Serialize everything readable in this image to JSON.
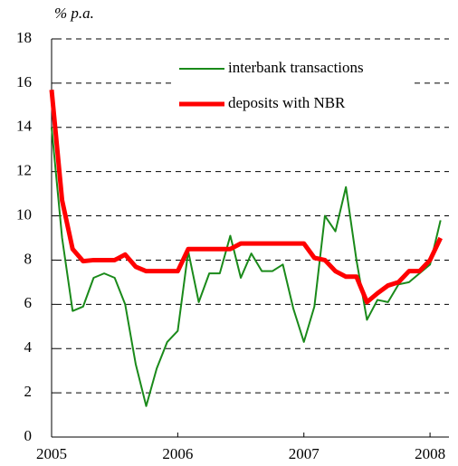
{
  "chart_data": {
    "type": "line",
    "ylabel": "% p.a.",
    "x": [
      2005,
      2005.0833,
      2005.1667,
      2005.25,
      2005.3333,
      2005.4167,
      2005.5,
      2005.5833,
      2005.6667,
      2005.75,
      2005.8333,
      2005.9167,
      2006,
      2006.0833,
      2006.1667,
      2006.25,
      2006.3333,
      2006.4167,
      2006.5,
      2006.5833,
      2006.6667,
      2006.75,
      2006.8333,
      2006.9167,
      2007,
      2007.0833,
      2007.1667,
      2007.25,
      2007.3333,
      2007.4167,
      2007.5,
      2007.5833,
      2007.6667,
      2007.75,
      2007.8333,
      2007.9167,
      2008,
      2008.0833
    ],
    "series": [
      {
        "name": "interbank transactions",
        "color": "#1a8a1a",
        "width": 2,
        "values": [
          14.0,
          9.0,
          5.7,
          5.9,
          7.2,
          7.4,
          7.2,
          6.0,
          3.3,
          1.4,
          3.1,
          4.3,
          4.8,
          8.4,
          6.1,
          7.4,
          7.4,
          9.1,
          7.2,
          8.3,
          7.5,
          7.5,
          7.8,
          5.8,
          4.3,
          5.9,
          10.0,
          9.3,
          11.3,
          8.0,
          5.3,
          6.2,
          6.1,
          6.9,
          7.0,
          7.4,
          7.8,
          9.8
        ]
      },
      {
        "name": "deposits with NBR",
        "color": "#ff0000",
        "width": 5,
        "values": [
          15.7,
          10.7,
          8.5,
          7.95,
          8.0,
          8.0,
          8.0,
          8.25,
          7.7,
          7.5,
          7.5,
          7.5,
          7.5,
          8.5,
          8.5,
          8.5,
          8.5,
          8.5,
          8.75,
          8.75,
          8.75,
          8.75,
          8.75,
          8.75,
          8.75,
          8.1,
          8.0,
          7.5,
          7.25,
          7.25,
          6.1,
          6.5,
          6.85,
          7.0,
          7.5,
          7.5,
          8.0,
          9.0
        ]
      }
    ],
    "xlim": [
      2005,
      2008.15
    ],
    "xticks": [
      2005,
      2006,
      2007,
      2008
    ],
    "ylim": [
      0,
      18
    ],
    "yticks": [
      0,
      2,
      4,
      6,
      8,
      10,
      12,
      14,
      16,
      18
    ],
    "grid": true,
    "legend": "upper center"
  }
}
